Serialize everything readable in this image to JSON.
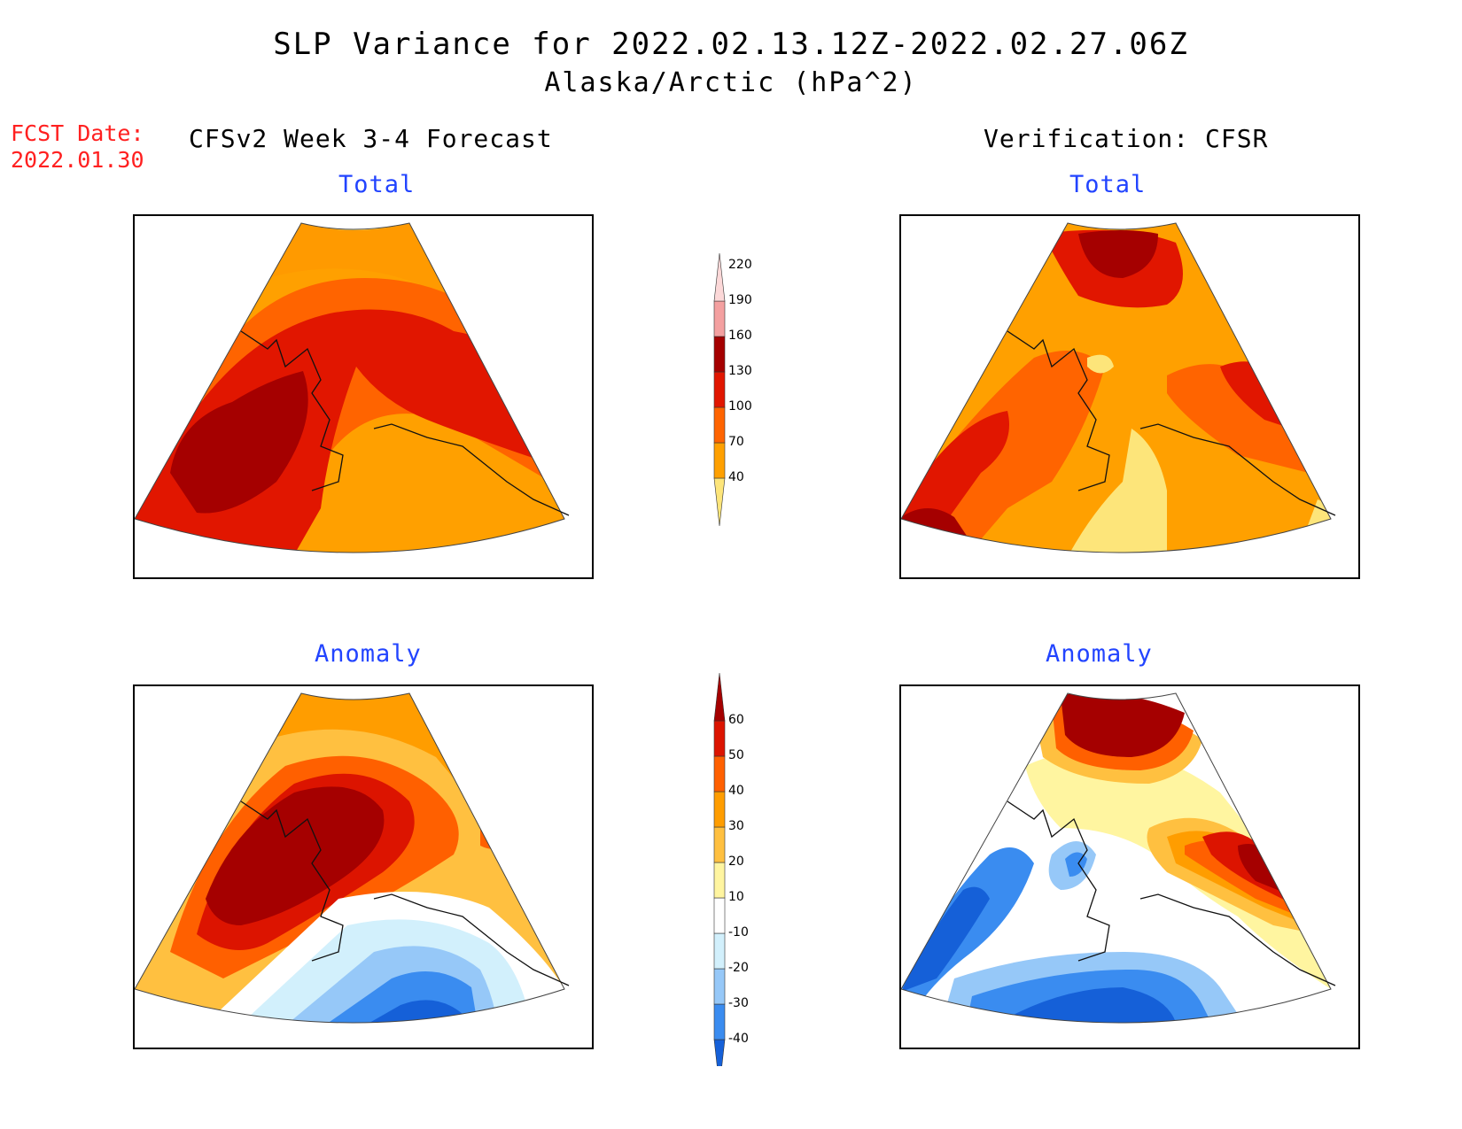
{
  "title": {
    "line1": "SLP Variance for 2022.02.13.12Z-2022.02.27.06Z",
    "line2": "Alaska/Arctic (hPa^2)"
  },
  "forecast_date": {
    "label": "FCST Date:",
    "value": "2022.01.30"
  },
  "columns": {
    "left_heading": "CFSv2 Week 3-4 Forecast",
    "right_heading": "Verification: CFSR"
  },
  "panels": {
    "forecast_total": {
      "subtitle": "Total"
    },
    "verification_total": {
      "subtitle": "Total"
    },
    "forecast_anomaly": {
      "subtitle": "Anomaly"
    },
    "verification_anomaly": {
      "subtitle": "Anomaly"
    }
  },
  "colorbars": {
    "total": {
      "ticks": [
        "40",
        "70",
        "100",
        "130",
        "160",
        "190",
        "220"
      ],
      "colors": [
        "#fde57a",
        "#ffa000",
        "#ff6400",
        "#e11600",
        "#a50000",
        "#f4a0a0",
        "#fcd8d8"
      ]
    },
    "anomaly": {
      "ticks": [
        "-40",
        "-30",
        "-20",
        "-10",
        "10",
        "20",
        "30",
        "40",
        "50",
        "60"
      ],
      "colors": [
        "#1560d8",
        "#3a8cf0",
        "#96c8f8",
        "#d2f0fc",
        "#ffffff",
        "#fff5a0",
        "#ffc040",
        "#ff9d00",
        "#ff6000",
        "#dc1400",
        "#a50000"
      ]
    }
  }
}
